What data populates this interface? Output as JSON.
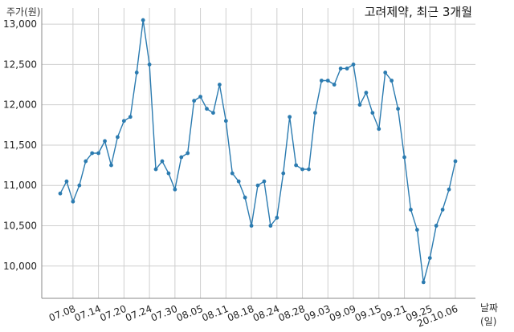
{
  "chart_data": {
    "type": "line",
    "title": "고려제약, 최근 3개월",
    "xlabel": "날짜(일)",
    "ylabel": "주가(원)",
    "ylim": [
      9600,
      13200
    ],
    "yticks": [
      10000,
      10500,
      11000,
      11500,
      12000,
      12500,
      13000
    ],
    "ytick_labels": [
      "10,000",
      "10,500",
      "11,000",
      "11,500",
      "12,000",
      "12,500",
      "13,000"
    ],
    "xtick_labels": [
      "07.08",
      "07.14",
      "07.20",
      "07.24",
      "07.30",
      "08.05",
      "08.11",
      "08.18",
      "08.24",
      "08.28",
      "09.03",
      "09.09",
      "09.15",
      "09.21",
      "09.25",
      "20.10.06"
    ],
    "xtick_indices": [
      2,
      6,
      10,
      14,
      18,
      22,
      26,
      30,
      34,
      38,
      42,
      46,
      50,
      54,
      58,
      62
    ],
    "grid": true,
    "line_color": "#2b7bb0",
    "series": [
      {
        "values": [
          10900,
          11050,
          10800,
          11000,
          11300,
          11400,
          11400,
          11550,
          11250,
          11600,
          11800,
          11850,
          12400,
          13050,
          12500,
          11200,
          11300,
          11150,
          10950,
          11350,
          11400,
          12050,
          12100,
          11950,
          11900,
          12250,
          11800,
          11150,
          11050,
          10850,
          10500,
          11000,
          11050,
          10500,
          10600,
          11150,
          11850,
          11250,
          11200,
          11200,
          11900,
          12300,
          12300,
          12250,
          12450,
          12450,
          12500,
          12000,
          12150,
          11900,
          11700,
          12400,
          12300,
          11950,
          11350,
          10700,
          10450,
          9800,
          10100,
          10500,
          10700,
          10950,
          11300
        ]
      }
    ]
  }
}
